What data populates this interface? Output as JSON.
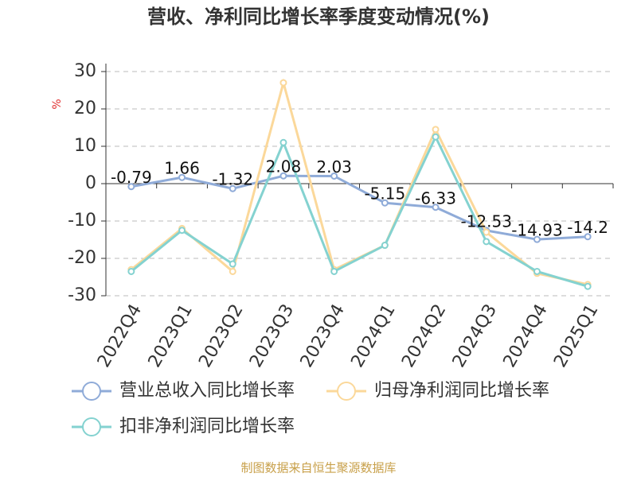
{
  "chart_data": {
    "type": "line",
    "title": "营收、净利同比增长率季度变动情况(%)",
    "y_label": "%",
    "source": "制图数据来自恒生聚源数据库",
    "categories": [
      "2022Q4",
      "2023Q1",
      "2023Q2",
      "2023Q3",
      "2023Q4",
      "2024Q1",
      "2024Q2",
      "2024Q3",
      "2024Q4",
      "2025Q1"
    ],
    "series": [
      {
        "name": "营业总收入同比增长率",
        "color": "#8fabd8",
        "values": [
          -0.79,
          1.66,
          -1.32,
          2.08,
          2.03,
          -5.15,
          -6.33,
          -12.53,
          -14.93,
          -14.2
        ],
        "show_labels": true
      },
      {
        "name": "归母净利润同比增长率",
        "color": "#fbd89a",
        "values": [
          -23,
          -12,
          -23.5,
          27,
          -23,
          -16.5,
          14.5,
          -13,
          -24,
          -27
        ]
      },
      {
        "name": "扣非净利润同比增长率",
        "color": "#84d2d0",
        "values": [
          -23.5,
          -12.5,
          -21.5,
          11,
          -23.5,
          -16.5,
          12.5,
          -15.5,
          -23.5,
          -27.5
        ]
      }
    ],
    "ylim": [
      -30,
      30
    ],
    "yticks": [
      30,
      20,
      10,
      0,
      -10,
      -20,
      -30
    ],
    "grid": true
  }
}
